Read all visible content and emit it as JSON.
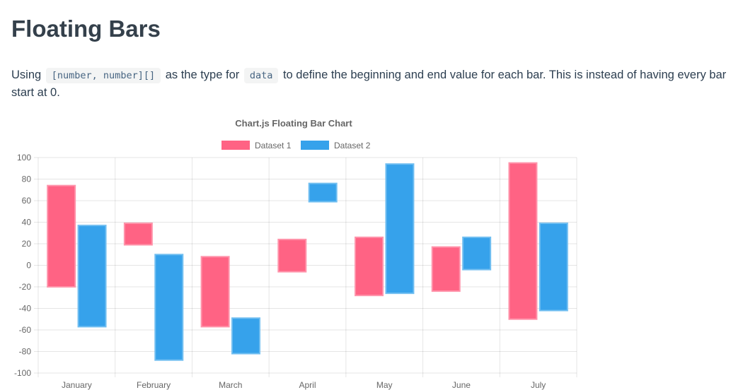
{
  "page": {
    "title": "Floating Bars"
  },
  "intro": {
    "t1": "Using",
    "c1": "[number, number][]",
    "t2": "as the type for",
    "c2": "data",
    "t3": "to define the beginning and end value for each bar. This is instead of having every bar start at 0."
  },
  "chart_data": {
    "type": "bar",
    "title": "Chart.js Floating Bar Chart",
    "categories": [
      "January",
      "February",
      "March",
      "April",
      "May",
      "June",
      "July"
    ],
    "series": [
      {
        "name": "Dataset 1",
        "color": "#FF6384",
        "border_color": "#ff94ab",
        "values": [
          [
            -20,
            74
          ],
          [
            19,
            39
          ],
          [
            -57,
            8
          ],
          [
            -6,
            24
          ],
          [
            -28,
            26
          ],
          [
            -24,
            17
          ],
          [
            -50,
            95
          ]
        ]
      },
      {
        "name": "Dataset 2",
        "color": "#36A2EB",
        "border_color": "#72bff1",
        "values": [
          [
            -57,
            37
          ],
          [
            -88,
            10
          ],
          [
            -82,
            -49
          ],
          [
            59,
            76
          ],
          [
            -26,
            94
          ],
          [
            -4,
            26
          ],
          [
            -42,
            39
          ]
        ]
      }
    ],
    "ylim": [
      -100,
      100
    ],
    "yticks": [
      100,
      80,
      60,
      40,
      20,
      0,
      -20,
      -40,
      -60,
      -80,
      -100
    ],
    "grid": true,
    "legend_position": "top",
    "gridline_color": "rgba(0,0,0,0.1)",
    "tick_label_color": "#666"
  }
}
